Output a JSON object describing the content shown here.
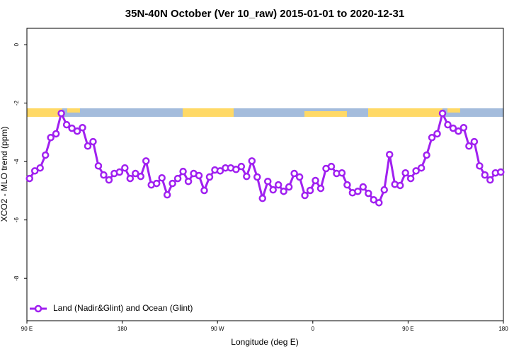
{
  "chart_data": {
    "type": "line",
    "title": "35N-40N October (Ver 10_raw)   2015-01-01 to 2020-12-31",
    "x_label": "Longitude (deg E)",
    "y_label": "XCO2 - MLO trend (ppm)",
    "xlim": [
      90,
      540
    ],
    "ylim": [
      -9.45,
      0.56
    ],
    "xticks": [
      {
        "value": 90,
        "label": "90 E"
      },
      {
        "value": 180,
        "label": "180"
      },
      {
        "value": 270,
        "label": "90 W"
      },
      {
        "value": 360,
        "label": "0"
      },
      {
        "value": 450,
        "label": "90 E"
      },
      {
        "value": 540,
        "label": "180"
      }
    ],
    "yticks": [
      0,
      -2,
      -4,
      -6,
      -8
    ],
    "legend": "bottom-left",
    "x": [
      92.5,
      97.5,
      102.5,
      107.5,
      112.5,
      117.5,
      122.5,
      127.5,
      132.5,
      137.5,
      142.5,
      147.5,
      152.5,
      157.5,
      162.5,
      167.5,
      172.5,
      177.5,
      182.5,
      187.5,
      192.5,
      197.5,
      202.5,
      207.5,
      212.5,
      217.5,
      222.5,
      227.5,
      232.5,
      237.5,
      242.5,
      247.5,
      252.5,
      257.5,
      262.5,
      267.5,
      272.5,
      277.5,
      282.5,
      287.5,
      292.5,
      297.5,
      302.5,
      307.5,
      312.5,
      317.5,
      322.5,
      327.5,
      332.5,
      337.5,
      342.5,
      347.5,
      352.5,
      357.5,
      362.5,
      367.5,
      372.5,
      377.5,
      382.5,
      387.5,
      392.5,
      397.5,
      402.5,
      407.5,
      412.5,
      417.5,
      422.5,
      427.5,
      432.5,
      437.5,
      442.5,
      447.5,
      452.5,
      457.5,
      462.5,
      467.5,
      472.5,
      477.5,
      482.5,
      487.5,
      492.5,
      497.5,
      502.5,
      507.5,
      512.5,
      517.5,
      522.5,
      527.5,
      532.5,
      537.5
    ],
    "series": [
      {
        "name": "Land (Nadir&Glint) and Ocean (Glint)",
        "color": "#a020f0",
        "values": [
          -4.58,
          -4.32,
          -4.22,
          -3.78,
          -3.18,
          -3.05,
          -2.35,
          -2.74,
          -2.86,
          -2.96,
          -2.84,
          -3.47,
          -3.32,
          -4.15,
          -4.46,
          -4.63,
          -4.41,
          -4.36,
          -4.22,
          -4.58,
          -4.41,
          -4.51,
          -3.98,
          -4.8,
          -4.75,
          -4.56,
          -5.14,
          -4.75,
          -4.58,
          -4.34,
          -4.68,
          -4.41,
          -4.48,
          -4.99,
          -4.53,
          -4.29,
          -4.32,
          -4.22,
          -4.22,
          -4.27,
          -4.17,
          -4.51,
          -3.98,
          -4.53,
          -5.26,
          -4.68,
          -4.97,
          -4.8,
          -5.02,
          -4.87,
          -4.41,
          -4.53,
          -5.16,
          -4.99,
          -4.65,
          -4.92,
          -4.24,
          -4.17,
          -4.41,
          -4.39,
          -4.8,
          -5.07,
          -5.02,
          -4.87,
          -5.09,
          -5.31,
          -5.41,
          -4.97,
          -3.76,
          -4.78,
          -4.82,
          -4.39,
          -4.58,
          -4.32,
          -4.22,
          -3.78,
          -3.18,
          -3.05,
          -2.35,
          -2.74,
          -2.86,
          -2.96,
          -2.84,
          -3.47,
          -3.32,
          -4.15,
          -4.46,
          -4.63,
          -4.39,
          -4.36
        ]
      }
    ]
  }
}
